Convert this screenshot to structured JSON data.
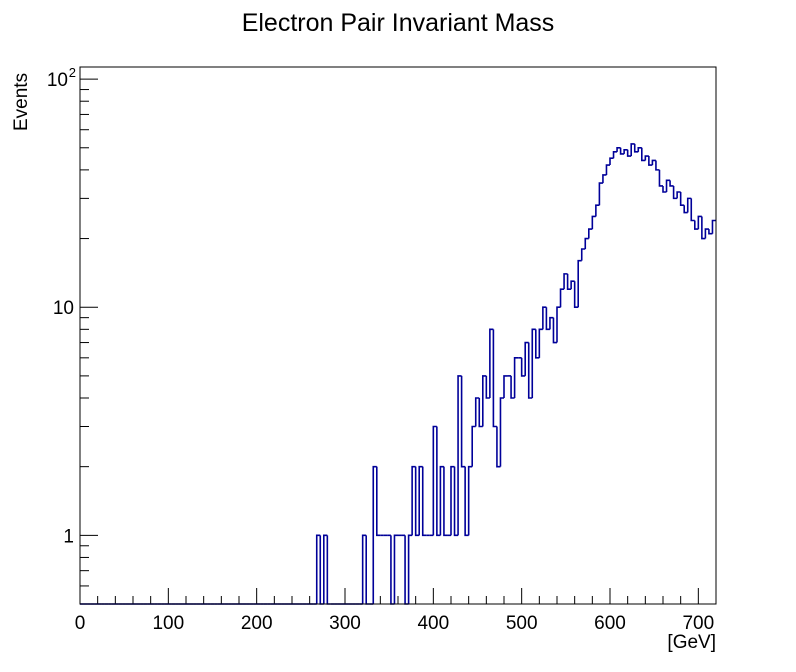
{
  "chart_data": {
    "type": "histogram-step",
    "title": "Electron Pair Invariant Mass",
    "xlabel": "[GeV]",
    "ylabel": "Events",
    "xlim": [
      0,
      720
    ],
    "ylim": [
      0.5,
      113
    ],
    "y_scale": "log",
    "grid": false,
    "legend": "none",
    "line_color": "#000099",
    "x_ticks": [
      "0",
      "100",
      "200",
      "300",
      "400",
      "500",
      "600",
      "700"
    ],
    "y_ticks": [
      {
        "value": 1,
        "label": "1"
      },
      {
        "value": 10,
        "label": "10"
      },
      {
        "value": 100,
        "label": "10",
        "exponent": "2"
      }
    ],
    "bin_width": 4,
    "bin_start": 0,
    "values": [
      0,
      0,
      0,
      0,
      0,
      0,
      0,
      0,
      0,
      0,
      0,
      0,
      0,
      0,
      0,
      0,
      0,
      0,
      0,
      0,
      0,
      0,
      0,
      0,
      0,
      0,
      0,
      0,
      0,
      0,
      0,
      0,
      0,
      0,
      0,
      0,
      0,
      0,
      0,
      0,
      0,
      0,
      0,
      0,
      0,
      0,
      0,
      0,
      0,
      0,
      0,
      0,
      0,
      0,
      0,
      0,
      0,
      0,
      0,
      0,
      0,
      0,
      0,
      0,
      0,
      0,
      0,
      1,
      0,
      1,
      0,
      0,
      0,
      0,
      0,
      0,
      0,
      0,
      0,
      0,
      1,
      0,
      0,
      2,
      1,
      1,
      1,
      1,
      0,
      1,
      1,
      1,
      0,
      1,
      2,
      1,
      2,
      1,
      1,
      1,
      3,
      1,
      2,
      1,
      1,
      2,
      1,
      5,
      2,
      1,
      2,
      3,
      4,
      3,
      5,
      4,
      8,
      3,
      2,
      4,
      5,
      5,
      4,
      6,
      6,
      5,
      7,
      4,
      8,
      6,
      8,
      10,
      8,
      9,
      7,
      10,
      12,
      14,
      12,
      13,
      10,
      16,
      18,
      20,
      22,
      25,
      28,
      35,
      38,
      42,
      45,
      48,
      50,
      47,
      49,
      46,
      52,
      48,
      50,
      44,
      46,
      42,
      44,
      40,
      34,
      32,
      36,
      34,
      30,
      32,
      28,
      26,
      30,
      24,
      22,
      25,
      20,
      22,
      21,
      24
    ]
  }
}
